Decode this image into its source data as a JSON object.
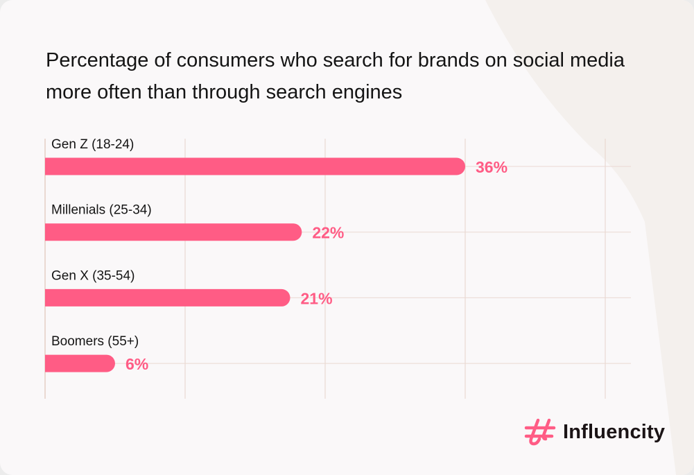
{
  "chart_data": {
    "type": "bar",
    "orientation": "horizontal",
    "title": "Percentage of consumers who search for brands on social media more often than through search engines",
    "categories": [
      "Gen Z (18-24)",
      "Millenials (25-34)",
      "Gen X (35-54)",
      "Boomers (55+)"
    ],
    "values": [
      36,
      22,
      21,
      6
    ],
    "value_labels": [
      "36%",
      "22%",
      "21%",
      "6%"
    ],
    "xlim": [
      0,
      48
    ],
    "grid": true,
    "xlabel": "",
    "ylabel": ""
  },
  "colors": {
    "bar": "#ff5c85",
    "label": "#ff5c85",
    "grid": "#ead9d2",
    "background": "#faf8f9",
    "decor": "#f4f0ed"
  },
  "brand": {
    "name": "Influencity"
  }
}
